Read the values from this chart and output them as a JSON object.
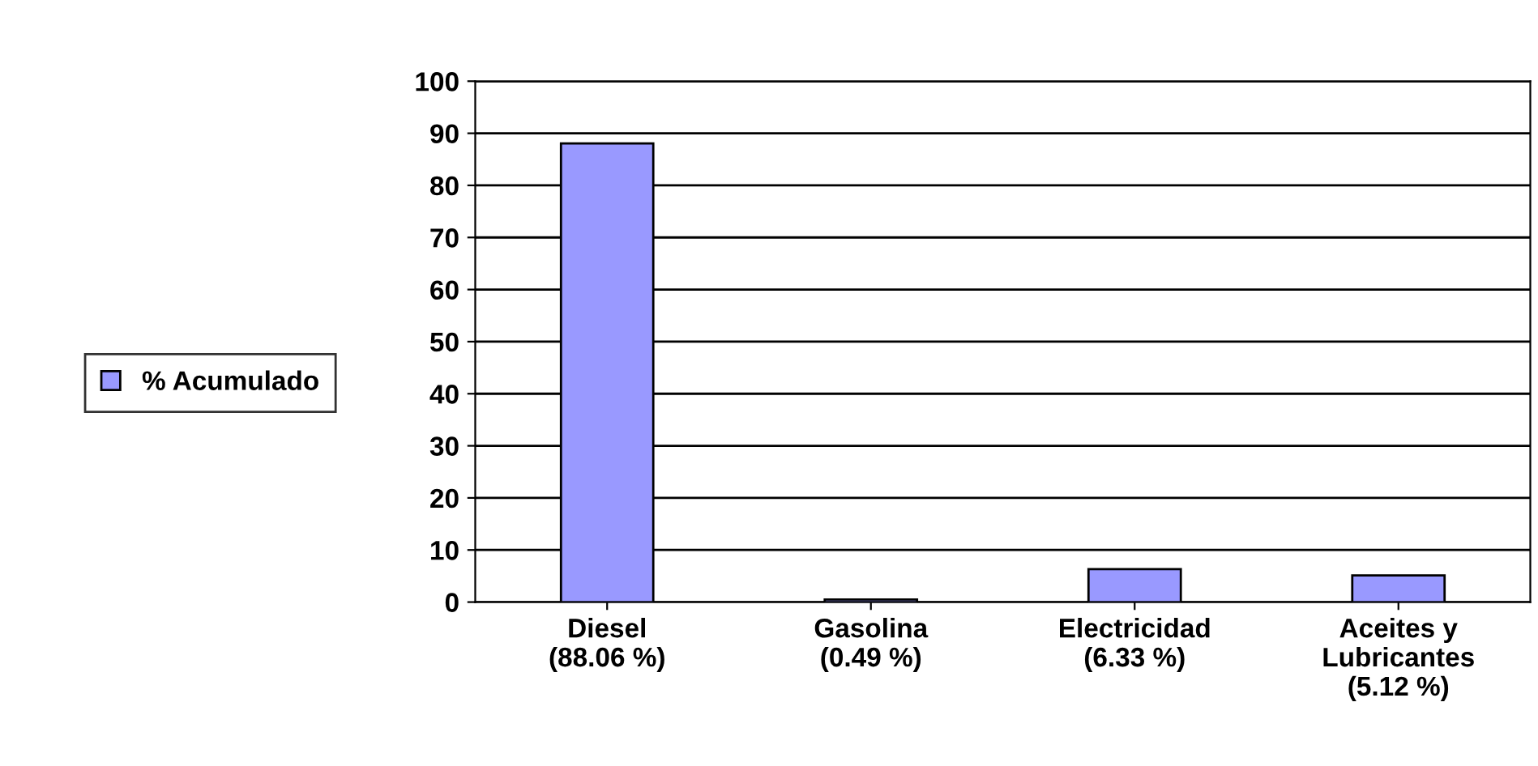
{
  "chart_data": {
    "type": "bar",
    "categories": [
      "Diesel\n(88.06 %)",
      "Gasolina\n(0.49 %)",
      "Electricidad\n(6.33 %)",
      "Aceites y\nLubricantes\n(5.12 %)"
    ],
    "series": [
      {
        "name": "% Acumulado",
        "color": "#9999ff",
        "values": [
          88.06,
          0.49,
          6.33,
          5.12
        ]
      }
    ],
    "ylim": [
      0,
      100
    ],
    "yticks": [
      0,
      10,
      20,
      30,
      40,
      50,
      60,
      70,
      80,
      90,
      100
    ],
    "grid": "y",
    "legend": "left"
  }
}
